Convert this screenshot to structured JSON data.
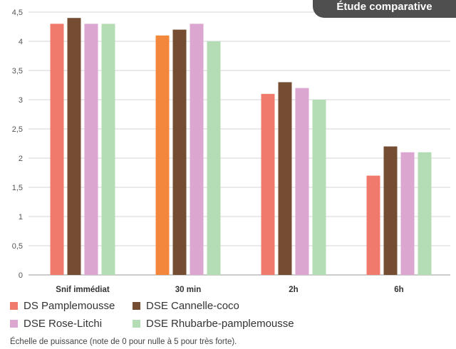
{
  "badge": "Étude comparative",
  "chart_data": {
    "type": "bar",
    "categories": [
      "Snif immédiat",
      "30 min",
      "2h",
      "6h"
    ],
    "series": [
      {
        "name": "DS Pamplemousse",
        "values": [
          4.3,
          4.1,
          3.1,
          1.7
        ],
        "color": "#f07b6c"
      },
      {
        "name": "DSE Cannelle-coco",
        "values": [
          4.4,
          4.2,
          3.3,
          2.2
        ],
        "color": "#744d33"
      },
      {
        "name": "DSE Rose-Litchi",
        "values": [
          4.3,
          4.3,
          3.2,
          2.1
        ],
        "color": "#dba6cf"
      },
      {
        "name": "DSE Rhubarbe-pamplemousse",
        "values": [
          4.3,
          4.0,
          3.0,
          2.1
        ],
        "color": "#b4ddb5"
      }
    ],
    "highlight": {
      "series": 0,
      "category": 1,
      "color": "#f3883c"
    },
    "yticks": [
      "0",
      "0,5",
      "1",
      "1,5",
      "2",
      "2,5",
      "3",
      "3,5",
      "4",
      "4,5"
    ],
    "ylim": [
      0,
      4.5
    ],
    "grid": true,
    "legend_position": "bottom-left"
  },
  "note": "Échelle de puissance (note de 0 pour nulle à 5 pour très forte)."
}
